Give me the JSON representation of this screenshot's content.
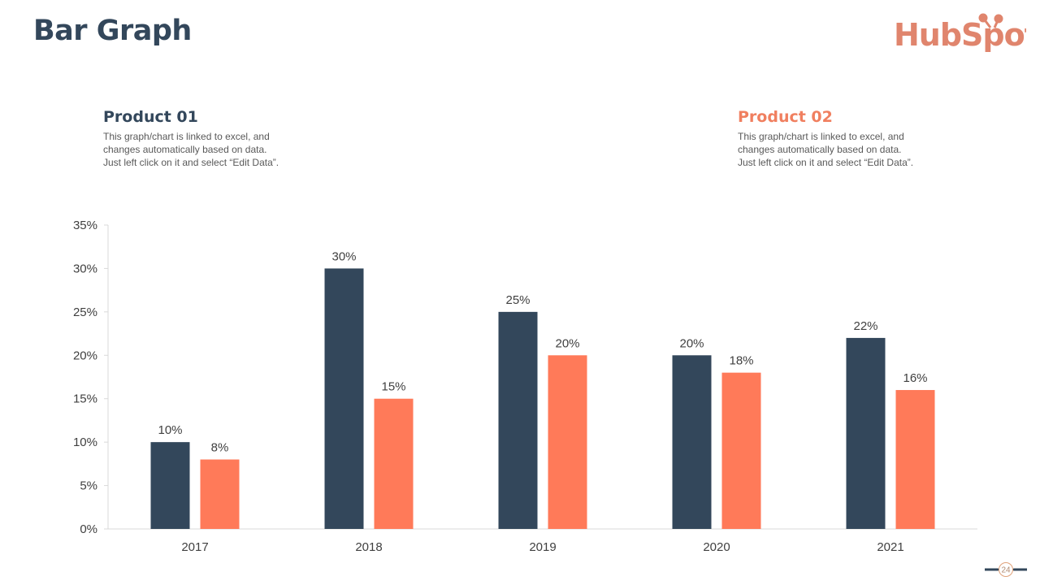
{
  "page": {
    "title": "Bar Graph",
    "logo_text": "HubSpot",
    "page_number": "24"
  },
  "products": [
    {
      "name": "Product 01",
      "description": [
        "This graph/chart is linked to excel, and",
        "changes automatically based on data.",
        "Just left click on it and select “Edit Data”."
      ],
      "color": "#33475b"
    },
    {
      "name": "Product 02",
      "description": [
        "This graph/chart is linked to excel, and",
        "changes automatically based on data.",
        "Just left click on it and select “Edit Data”."
      ],
      "color": "#f07f5f"
    }
  ],
  "chart_data": {
    "type": "bar",
    "title": "",
    "xlabel": "",
    "ylabel": "",
    "categories": [
      "2017",
      "2018",
      "2019",
      "2020",
      "2021"
    ],
    "series": [
      {
        "name": "Product 01",
        "values": [
          10,
          30,
          25,
          20,
          22
        ],
        "color": "#33475b"
      },
      {
        "name": "Product 02",
        "values": [
          8,
          15,
          20,
          18,
          16
        ],
        "color": "#ff7a59"
      }
    ],
    "ylim": [
      0,
      35
    ],
    "yticks": [
      0,
      5,
      10,
      15,
      20,
      25,
      30,
      35
    ],
    "ytick_format": "{v}%",
    "data_label_format": "{v}%",
    "grid": false,
    "legend": "none"
  }
}
